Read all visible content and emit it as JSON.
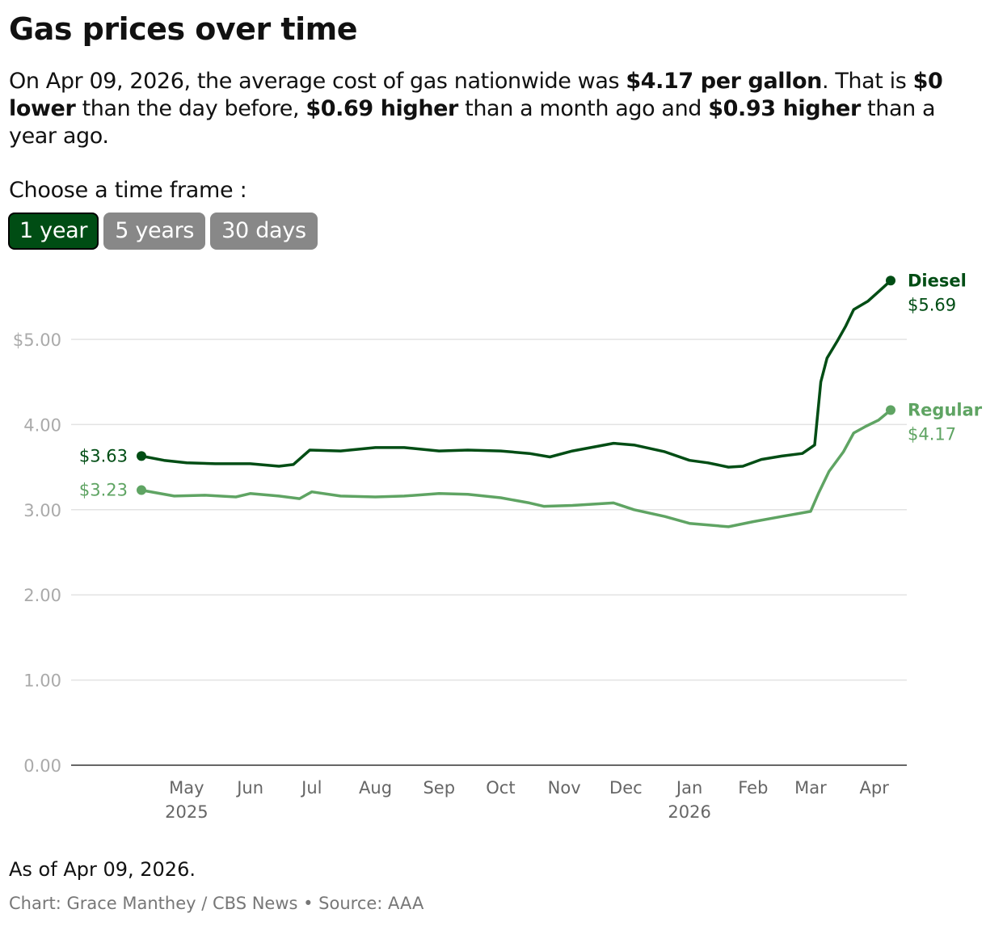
{
  "title": "Gas prices over time",
  "intro": {
    "p1": "On Apr 09, 2026, the average cost of gas nationwide was ",
    "b1": "$4.17 per gallon",
    "p2": ". That is ",
    "b2": "$0 lower",
    "p3": " than the day before, ",
    "b3": "$0.69 higher",
    "p4": " than a month ago and ",
    "b4": "$0.93 higher",
    "p5": " than a year ago."
  },
  "timeframe": {
    "label": "Choose a time frame :",
    "options": [
      "1 year",
      "5 years",
      "30 days"
    ],
    "selected": "1 year"
  },
  "colors": {
    "diesel": "#004d14",
    "regular": "#5fa463",
    "active_button": "#004d14",
    "inactive_button": "#888888"
  },
  "chart_data": {
    "type": "line",
    "xlim": [
      "2025-04-09",
      "2026-04-09"
    ],
    "ylim": [
      0,
      5.5
    ],
    "yticks": [
      "0.00",
      "1.00",
      "2.00",
      "3.00",
      "4.00",
      "$5.00"
    ],
    "ytick_values": [
      0,
      1,
      2,
      3,
      4,
      5
    ],
    "xticks": [
      {
        "label": "May",
        "sub": "2025",
        "date": "2025-05-01"
      },
      {
        "label": "Jun",
        "date": "2025-06-01"
      },
      {
        "label": "Jul",
        "date": "2025-07-01"
      },
      {
        "label": "Aug",
        "date": "2025-08-01"
      },
      {
        "label": "Sep",
        "date": "2025-09-01"
      },
      {
        "label": "Oct",
        "date": "2025-10-01"
      },
      {
        "label": "Nov",
        "date": "2025-11-01"
      },
      {
        "label": "Dec",
        "date": "2025-12-01"
      },
      {
        "label": "Jan",
        "sub": "2026",
        "date": "2026-01-01"
      },
      {
        "label": "Feb",
        "date": "2026-02-01"
      },
      {
        "label": "Mar",
        "date": "2026-03-01"
      },
      {
        "label": "Apr",
        "date": "2026-04-01"
      }
    ],
    "grid": true,
    "series": [
      {
        "name": "Diesel",
        "start_label": "$3.63",
        "end_label": "$5.69",
        "points": [
          [
            "2025-04-09",
            3.63
          ],
          [
            "2025-04-20",
            3.58
          ],
          [
            "2025-05-01",
            3.55
          ],
          [
            "2025-05-15",
            3.54
          ],
          [
            "2025-06-01",
            3.54
          ],
          [
            "2025-06-15",
            3.51
          ],
          [
            "2025-06-22",
            3.53
          ],
          [
            "2025-06-30",
            3.7
          ],
          [
            "2025-07-15",
            3.69
          ],
          [
            "2025-08-01",
            3.73
          ],
          [
            "2025-08-15",
            3.73
          ],
          [
            "2025-09-01",
            3.69
          ],
          [
            "2025-09-15",
            3.7
          ],
          [
            "2025-10-01",
            3.69
          ],
          [
            "2025-10-15",
            3.66
          ],
          [
            "2025-10-25",
            3.62
          ],
          [
            "2025-11-05",
            3.69
          ],
          [
            "2025-11-25",
            3.78
          ],
          [
            "2025-12-05",
            3.76
          ],
          [
            "2025-12-20",
            3.68
          ],
          [
            "2026-01-01",
            3.58
          ],
          [
            "2026-01-10",
            3.55
          ],
          [
            "2026-01-20",
            3.5
          ],
          [
            "2026-01-27",
            3.51
          ],
          [
            "2026-02-05",
            3.59
          ],
          [
            "2026-02-15",
            3.63
          ],
          [
            "2026-02-25",
            3.66
          ],
          [
            "2026-03-03",
            3.76
          ],
          [
            "2026-03-06",
            4.5
          ],
          [
            "2026-03-09",
            4.78
          ],
          [
            "2026-03-14",
            4.98
          ],
          [
            "2026-03-18",
            5.15
          ],
          [
            "2026-03-22",
            5.35
          ],
          [
            "2026-03-29",
            5.45
          ],
          [
            "2026-04-04",
            5.58
          ],
          [
            "2026-04-09",
            5.69
          ]
        ]
      },
      {
        "name": "Regular",
        "start_label": "$3.23",
        "end_label": "$4.17",
        "points": [
          [
            "2025-04-09",
            3.23
          ],
          [
            "2025-04-25",
            3.16
          ],
          [
            "2025-05-10",
            3.17
          ],
          [
            "2025-05-25",
            3.15
          ],
          [
            "2025-06-01",
            3.19
          ],
          [
            "2025-06-15",
            3.16
          ],
          [
            "2025-06-25",
            3.13
          ],
          [
            "2025-07-01",
            3.21
          ],
          [
            "2025-07-15",
            3.16
          ],
          [
            "2025-08-01",
            3.15
          ],
          [
            "2025-08-15",
            3.16
          ],
          [
            "2025-09-01",
            3.19
          ],
          [
            "2025-09-15",
            3.18
          ],
          [
            "2025-10-01",
            3.14
          ],
          [
            "2025-10-15",
            3.08
          ],
          [
            "2025-10-22",
            3.04
          ],
          [
            "2025-11-05",
            3.05
          ],
          [
            "2025-11-25",
            3.08
          ],
          [
            "2025-12-05",
            3.0
          ],
          [
            "2025-12-20",
            2.92
          ],
          [
            "2026-01-01",
            2.84
          ],
          [
            "2026-01-20",
            2.8
          ],
          [
            "2026-02-01",
            2.86
          ],
          [
            "2026-02-15",
            2.92
          ],
          [
            "2026-03-01",
            2.98
          ],
          [
            "2026-03-05",
            3.2
          ],
          [
            "2026-03-10",
            3.45
          ],
          [
            "2026-03-17",
            3.68
          ],
          [
            "2026-03-22",
            3.9
          ],
          [
            "2026-03-28",
            3.98
          ],
          [
            "2026-04-03",
            4.05
          ],
          [
            "2026-04-09",
            4.17
          ]
        ]
      }
    ]
  },
  "footer": {
    "asof": "As of Apr 09, 2026.",
    "credit": "Chart: Grace Manthey / CBS News • Source: AAA"
  }
}
